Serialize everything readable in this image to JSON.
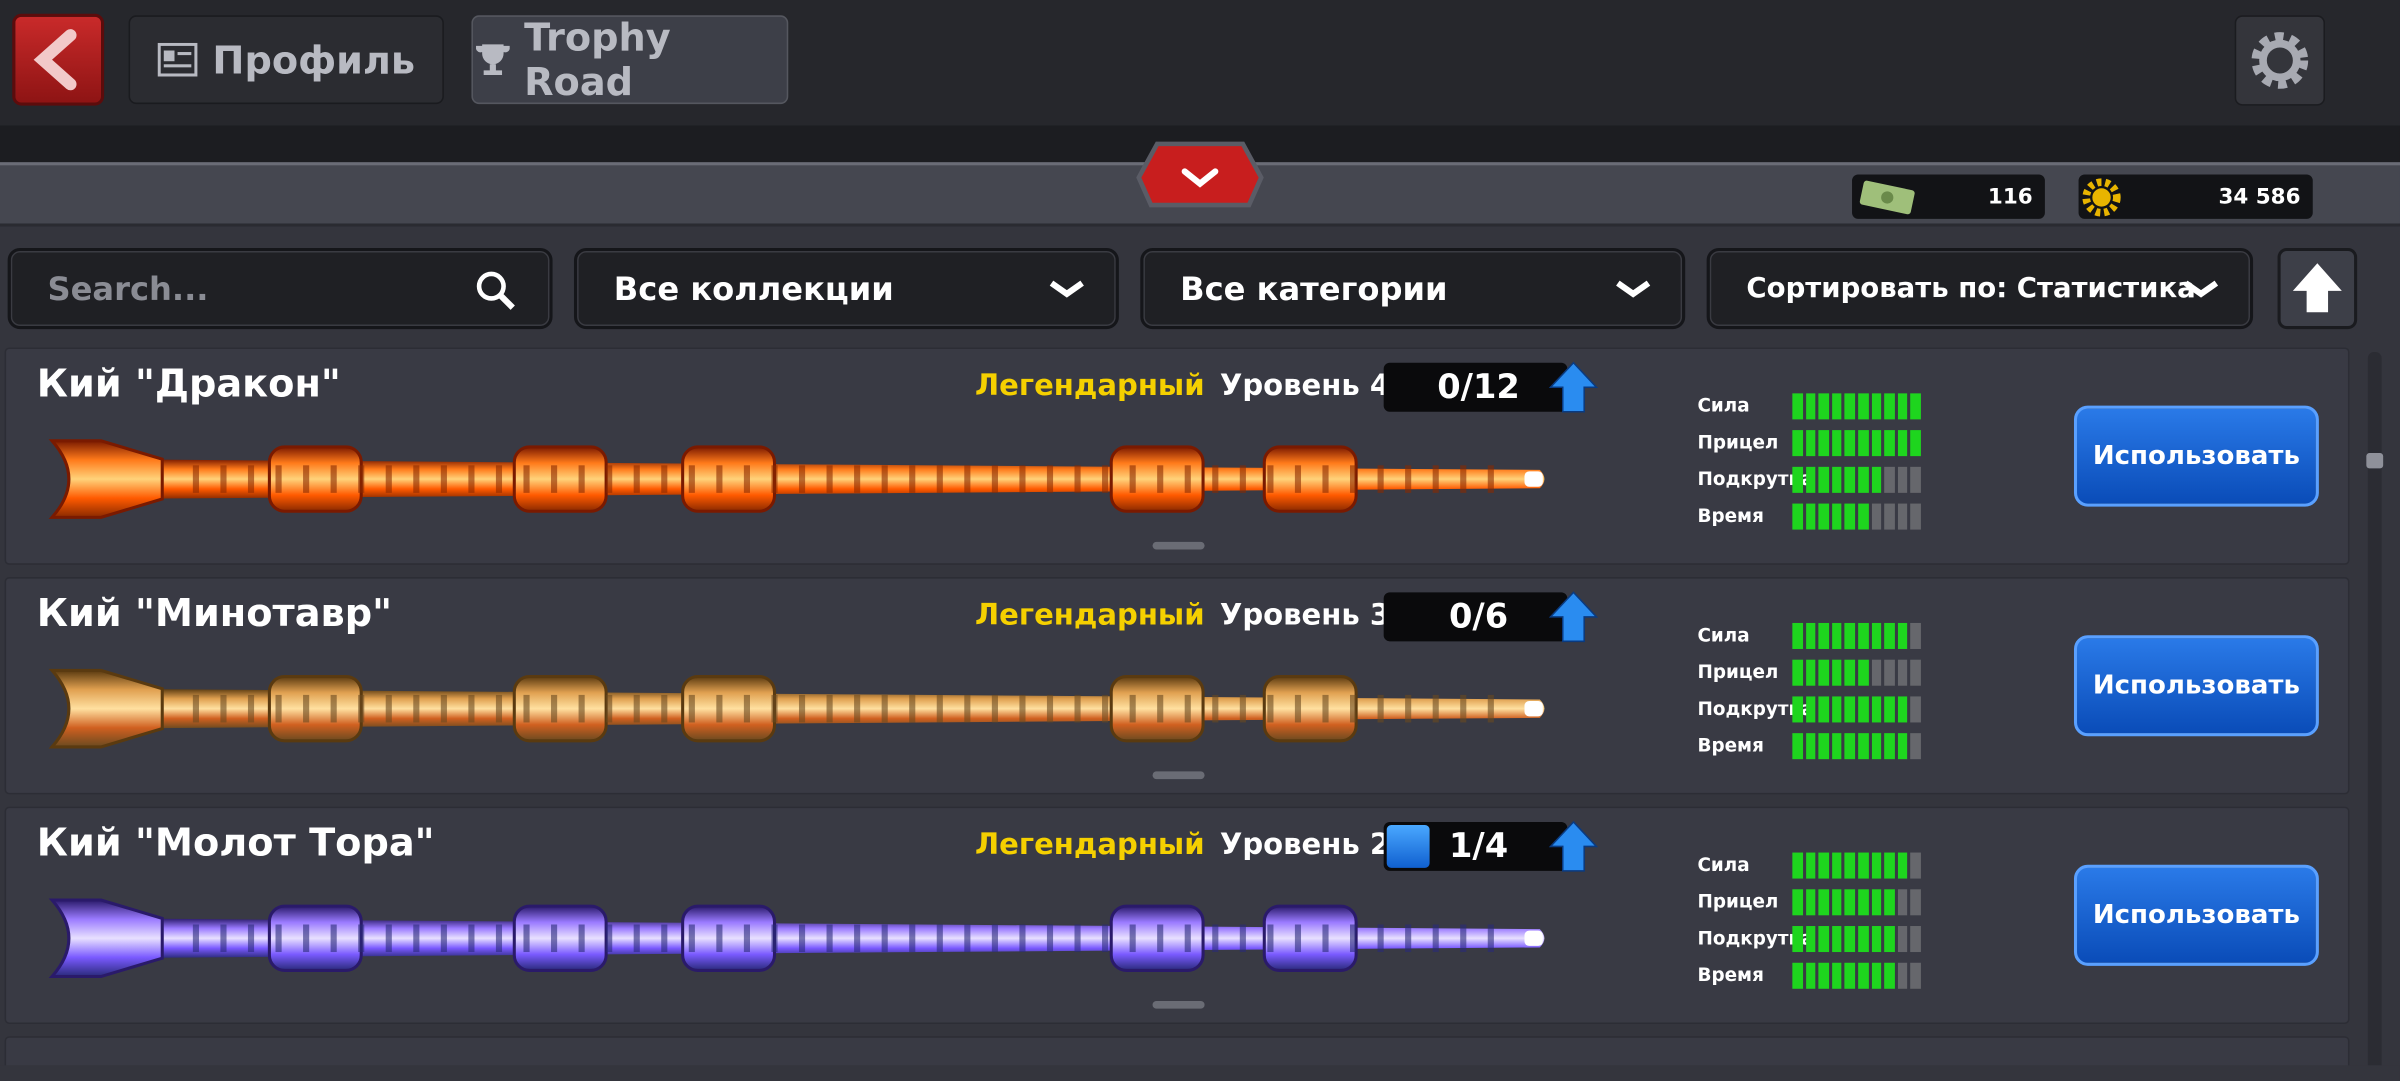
{
  "header": {
    "profile": "Профиль",
    "trophy_road": "Trophy Road"
  },
  "currency": {
    "cash": "116",
    "coins": "34 586"
  },
  "filters": {
    "search_placeholder": "Search...",
    "collections": "Все коллекции",
    "categories": "Все категории",
    "sort": "Сортировать по: Статистика"
  },
  "segments": 10,
  "cues": [
    {
      "name": "Кий \"Дракон\"",
      "rarity": "Легендарный",
      "level": "Уровень 4",
      "progress_current": 0,
      "progress_max": 12,
      "stats": [
        {
          "label": "Сила",
          "value": 10
        },
        {
          "label": "Прицел",
          "value": 10
        },
        {
          "label": "Подкрутка",
          "value": 7
        },
        {
          "label": "Время",
          "value": 6
        }
      ],
      "button": "Использовать"
    },
    {
      "name": "Кий \"Минотавр\"",
      "rarity": "Легендарный",
      "level": "Уровень 3",
      "progress_current": 0,
      "progress_max": 6,
      "stats": [
        {
          "label": "Сила",
          "value": 9
        },
        {
          "label": "Прицел",
          "value": 6
        },
        {
          "label": "Подкрутка",
          "value": 9
        },
        {
          "label": "Время",
          "value": 9
        }
      ],
      "button": "Использовать"
    },
    {
      "name": "Кий \"Молот Тора\"",
      "rarity": "Легендарный",
      "level": "Уровень 2",
      "progress_current": 1,
      "progress_max": 4,
      "stats": [
        {
          "label": "Сила",
          "value": 9
        },
        {
          "label": "Прицел",
          "value": 8
        },
        {
          "label": "Подкрутка",
          "value": 8
        },
        {
          "label": "Время",
          "value": 8
        }
      ],
      "button": "Использовать"
    }
  ]
}
